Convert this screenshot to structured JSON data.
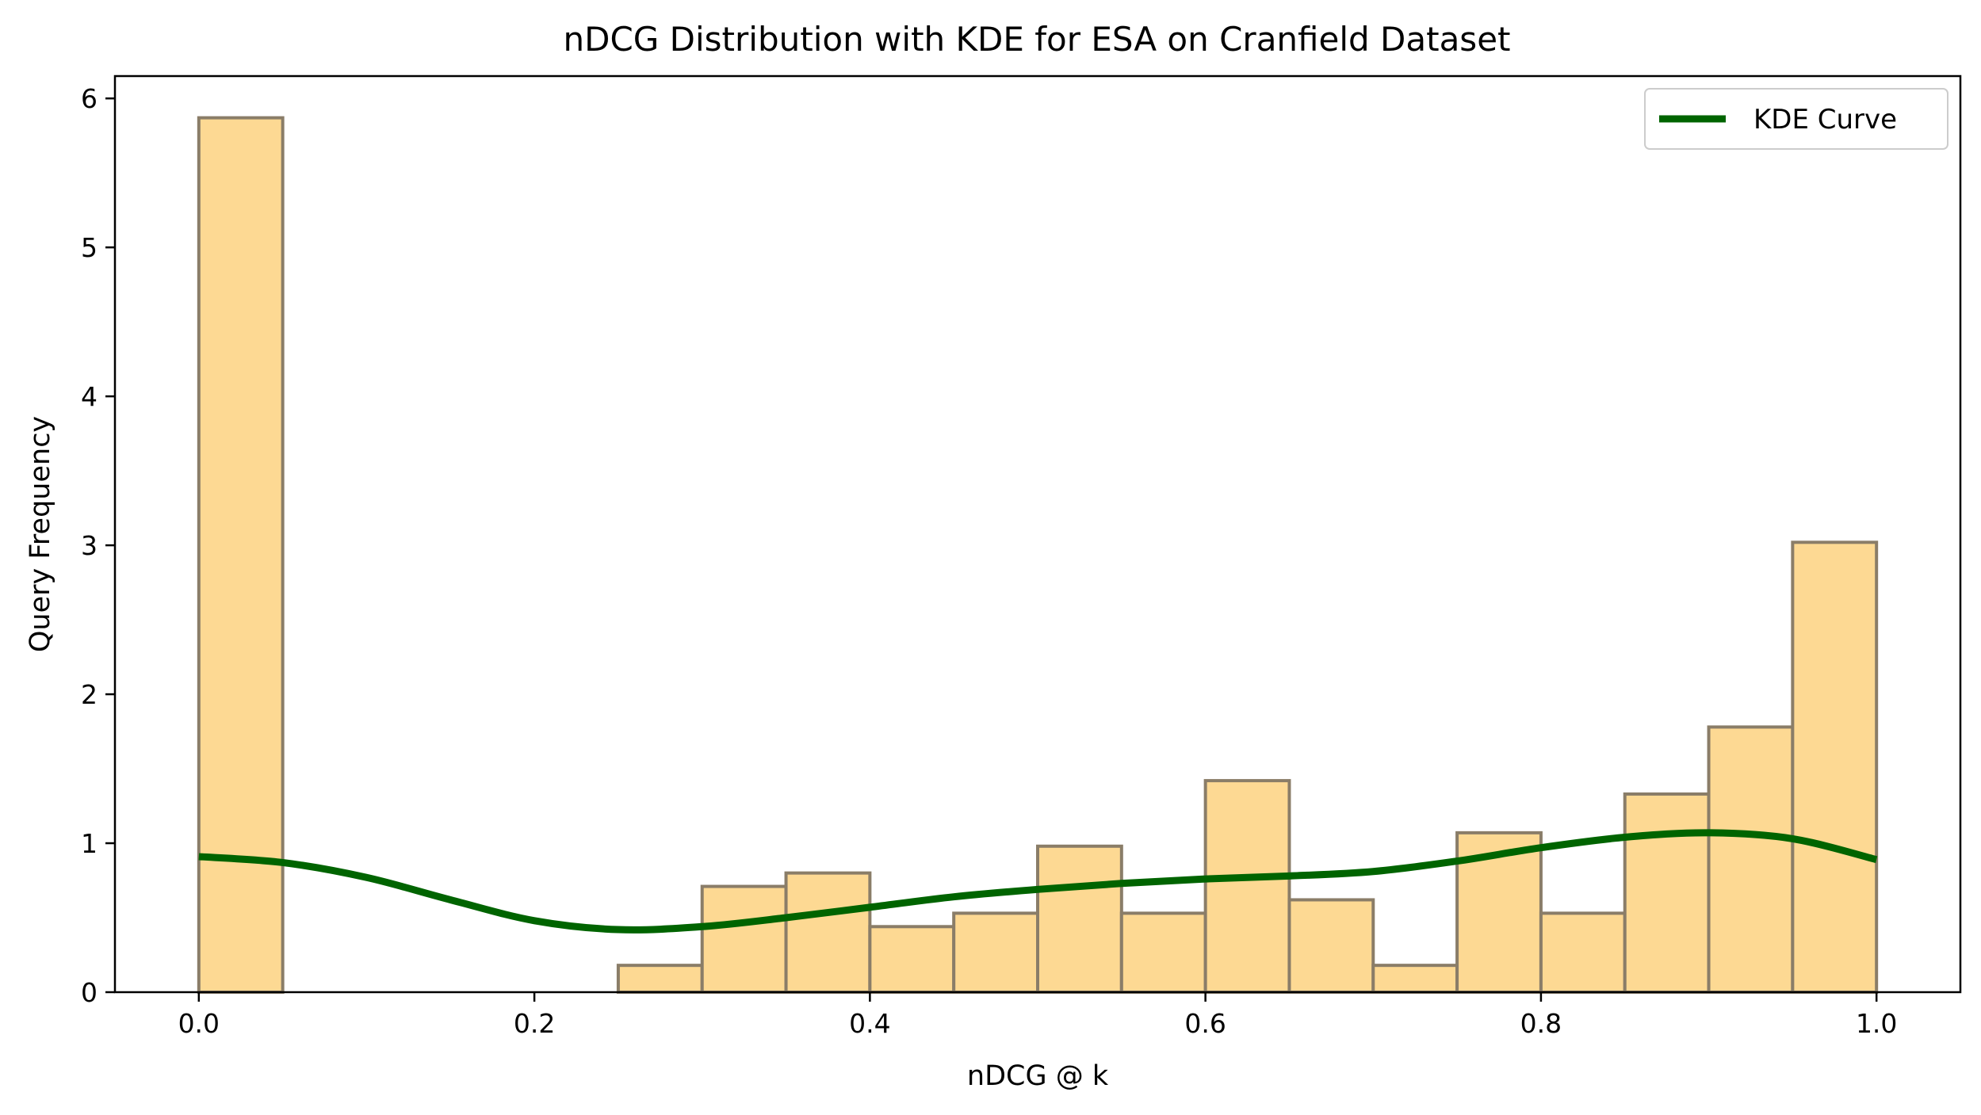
{
  "chart_data": {
    "type": "bar",
    "title": "nDCG Distribution with KDE for ESA on Cranfield Dataset",
    "xlabel": "nDCG @ k",
    "ylabel": "Query Frequency",
    "xlim": [
      -0.05,
      1.05
    ],
    "ylim": [
      0,
      6.15
    ],
    "x_ticks": [
      0.0,
      0.2,
      0.4,
      0.6,
      0.8,
      1.0
    ],
    "x_tick_labels": [
      "0.0",
      "0.2",
      "0.4",
      "0.6",
      "0.8",
      "1.0"
    ],
    "y_ticks": [
      0,
      1,
      2,
      3,
      4,
      5,
      6
    ],
    "y_tick_labels": [
      "0",
      "1",
      "2",
      "3",
      "4",
      "5",
      "6"
    ],
    "grid": false,
    "bin_width": 0.05,
    "bins_start": [
      0.0,
      0.05,
      0.1,
      0.15,
      0.2,
      0.25,
      0.3,
      0.35,
      0.4,
      0.45,
      0.5,
      0.55,
      0.6,
      0.65,
      0.7,
      0.75,
      0.8,
      0.85,
      0.9,
      0.95
    ],
    "values": [
      5.87,
      0,
      0,
      0,
      0,
      0.18,
      0.71,
      0.8,
      0.44,
      0.53,
      0.98,
      0.53,
      1.42,
      0.62,
      0.18,
      1.07,
      0.53,
      1.33,
      1.78,
      3.02
    ],
    "bar_color": "#fdd993",
    "bar_edge_color": "#8a7d68",
    "kde": {
      "name": "KDE Curve",
      "color": "#006400",
      "x": [
        0.0,
        0.05,
        0.1,
        0.15,
        0.2,
        0.25,
        0.3,
        0.35,
        0.4,
        0.45,
        0.5,
        0.55,
        0.6,
        0.65,
        0.7,
        0.75,
        0.8,
        0.85,
        0.9,
        0.95,
        1.0
      ],
      "y": [
        0.91,
        0.87,
        0.77,
        0.62,
        0.48,
        0.42,
        0.44,
        0.5,
        0.57,
        0.64,
        0.69,
        0.73,
        0.76,
        0.78,
        0.81,
        0.88,
        0.97,
        1.04,
        1.07,
        1.03,
        0.89
      ]
    },
    "legend": {
      "placement": "top-right",
      "entries": [
        "KDE Curve"
      ]
    }
  }
}
